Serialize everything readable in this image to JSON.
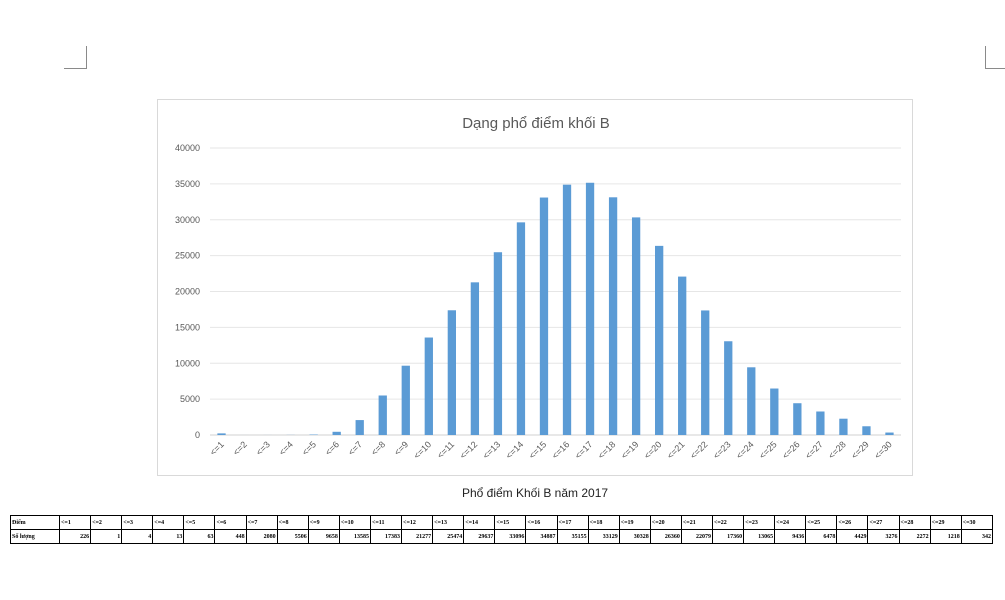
{
  "chart_data": {
    "type": "bar",
    "title": "Dạng phổ điểm khối B",
    "categories": [
      "<=1",
      "<=2",
      "<=3",
      "<=4",
      "<=5",
      "<=6",
      "<=7",
      "<=8",
      "<=9",
      "<=10",
      "<=11",
      "<=12",
      "<=13",
      "<=14",
      "<=15",
      "<=16",
      "<=17",
      "<=18",
      "<=19",
      "<=20",
      "<=21",
      "<=22",
      "<=23",
      "<=24",
      "<=25",
      "<=26",
      "<=27",
      "<=28",
      "<=29",
      "<=30"
    ],
    "values": [
      226,
      1,
      4,
      13,
      63,
      448,
      2080,
      5506,
      9658,
      13585,
      17383,
      21277,
      25474,
      29637,
      33096,
      34887,
      35155,
      33129,
      30328,
      26360,
      22079,
      17360,
      13065,
      9436,
      6478,
      4429,
      3276,
      2272,
      1218,
      342
    ],
    "ylim": [
      0,
      40000
    ],
    "yticks": [
      0,
      5000,
      10000,
      15000,
      20000,
      25000,
      30000,
      35000,
      40000
    ],
    "grid": true,
    "legend": "none",
    "bar_color": "#5b9bd5"
  },
  "caption": "Phổ điểm Khối B năm 2017",
  "table": {
    "row1_label": "Điểm",
    "row2_label": "Số lượng"
  }
}
